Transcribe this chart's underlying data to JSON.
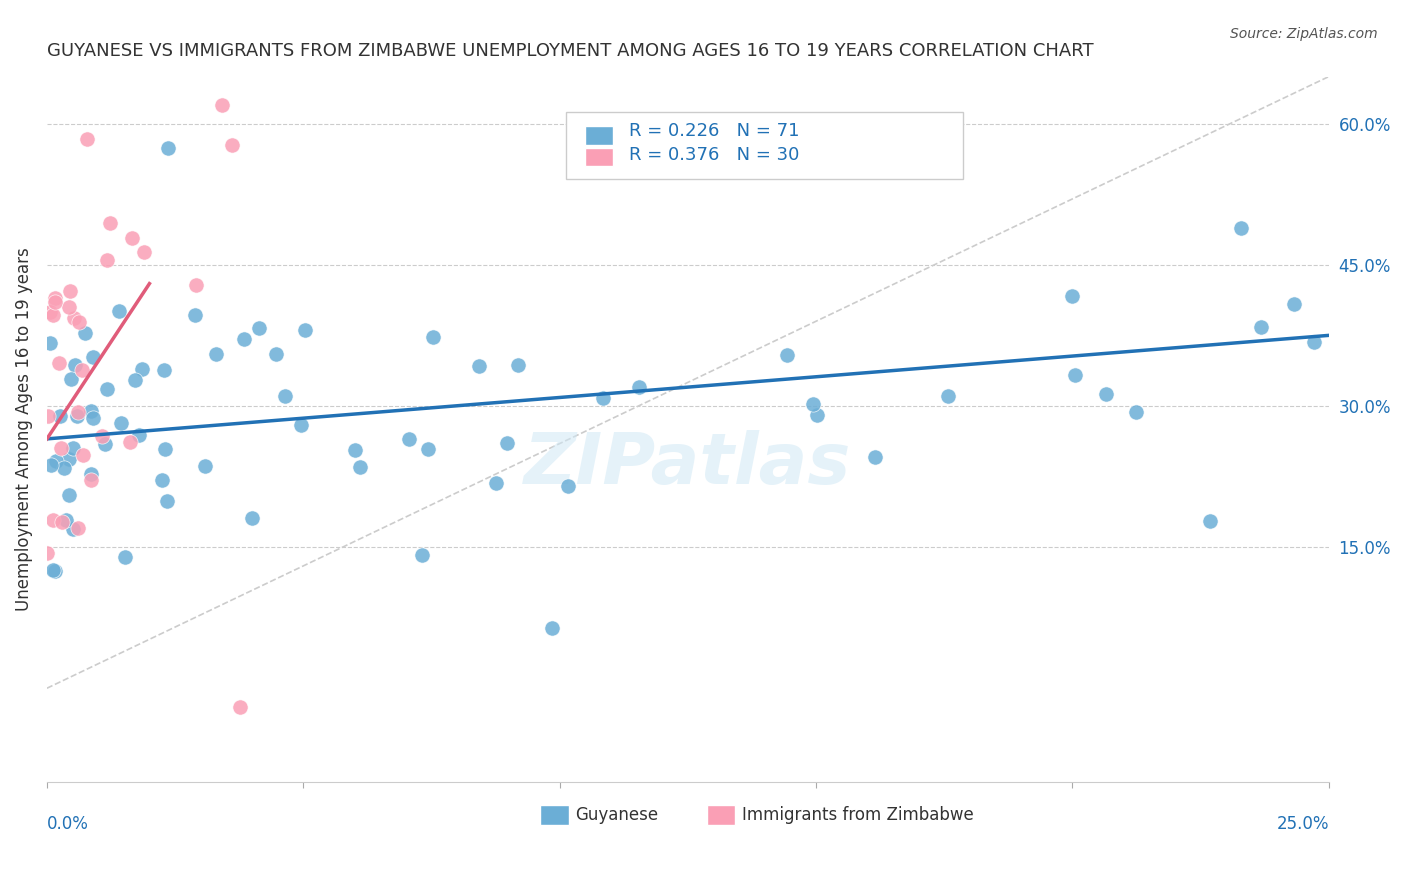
{
  "title": "GUYANESE VS IMMIGRANTS FROM ZIMBABWE UNEMPLOYMENT AMONG AGES 16 TO 19 YEARS CORRELATION CHART",
  "source": "Source: ZipAtlas.com",
  "ylabel": "Unemployment Among Ages 16 to 19 years",
  "right_yticks": [
    "15.0%",
    "30.0%",
    "45.0%",
    "60.0%"
  ],
  "right_ytick_vals": [
    0.15,
    0.3,
    0.45,
    0.6
  ],
  "xlim": [
    0.0,
    0.25
  ],
  "ylim": [
    -0.1,
    0.65
  ],
  "legend_blue_R": "0.226",
  "legend_blue_N": "71",
  "legend_pink_R": "0.376",
  "legend_pink_N": "30",
  "blue_color": "#6baed6",
  "pink_color": "#fa9fb5",
  "blue_line_color": "#2171b5",
  "pink_line_color": "#e05c7a",
  "title_color": "#333333",
  "source_color": "#555555",
  "watermark": "ZIPatlas",
  "blue_line_x": [
    0.0,
    0.25
  ],
  "blue_line_y": [
    0.265,
    0.375
  ],
  "pink_line_x": [
    0.0,
    0.02
  ],
  "pink_line_y": [
    0.265,
    0.43
  ],
  "diag_line_x": [
    0.0,
    0.25
  ],
  "diag_line_y": [
    0.0,
    0.65
  ]
}
